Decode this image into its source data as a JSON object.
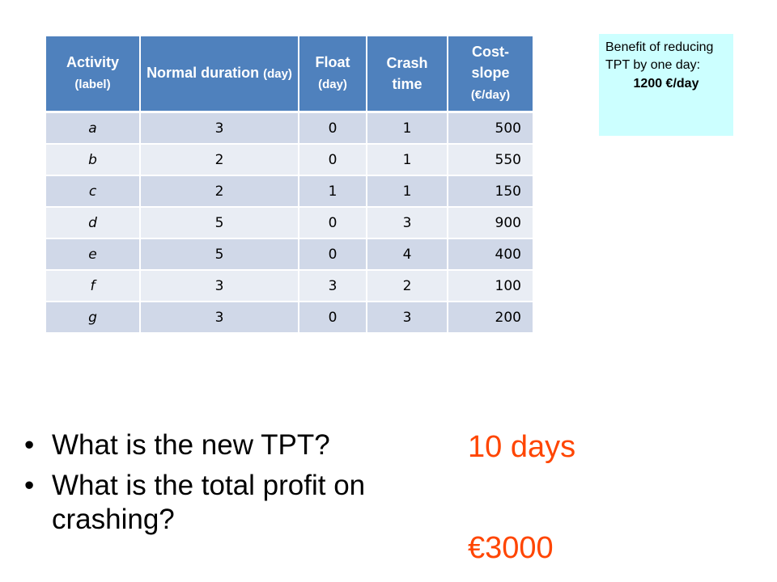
{
  "table": {
    "headers": [
      {
        "main": "Activity",
        "sub": "(label)"
      },
      {
        "main": "Normal duration",
        "sub": "(day)"
      },
      {
        "main": "Float",
        "sub": "(day)"
      },
      {
        "main": "Crash time",
        "sub": ""
      },
      {
        "main": "Cost-slope",
        "sub": "(€/day)"
      }
    ],
    "rows": [
      [
        "a",
        "3",
        "0",
        "1",
        "500"
      ],
      [
        "b",
        "2",
        "0",
        "1",
        "550"
      ],
      [
        "c",
        "2",
        "1",
        "1",
        "150"
      ],
      [
        "d",
        "5",
        "0",
        "3",
        "900"
      ],
      [
        "e",
        "5",
        "0",
        "4",
        "400"
      ],
      [
        "f",
        "3",
        "3",
        "2",
        "100"
      ],
      [
        "g",
        "3",
        "0",
        "3",
        "200"
      ]
    ]
  },
  "benefit": {
    "text": "Benefit of reducing TPT by one day:",
    "value": "1200 €/day"
  },
  "questions": [
    "What is the new TPT?",
    "What is the total profit on crashing?"
  ],
  "answers": [
    "10 days",
    "€3000"
  ],
  "colors": {
    "header_bg": "#4f81bd",
    "row_odd": "#d0d8e8",
    "row_even": "#e9edf4",
    "benefit_bg": "#ccffff",
    "answer": "#ff4500"
  }
}
